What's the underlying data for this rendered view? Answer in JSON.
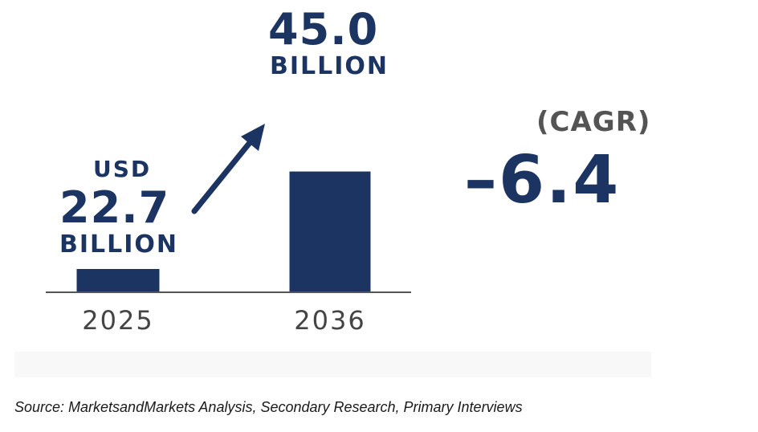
{
  "chart_data": {
    "type": "bar",
    "categories": [
      "2025",
      "2036"
    ],
    "values": [
      22.7,
      45.0
    ],
    "value_labels": [
      {
        "prefix": "USD",
        "value": "22.7",
        "unit": "BILLION"
      },
      {
        "prefix": "",
        "value": "45.0",
        "unit": "BILLION"
      }
    ],
    "bar_color": "#1c3461",
    "axis_color": "#555555",
    "tick_label_color": "#444444",
    "grid": false,
    "title": "",
    "xlabel": "",
    "ylabel": "",
    "annotations": {
      "arrow": "up-right-arrow",
      "cagr_label": "(CAGR)",
      "cagr_value": "–6.4"
    }
  },
  "source": "Source: MarketsandMarkets Analysis, Secondary Research, Primary Interviews"
}
